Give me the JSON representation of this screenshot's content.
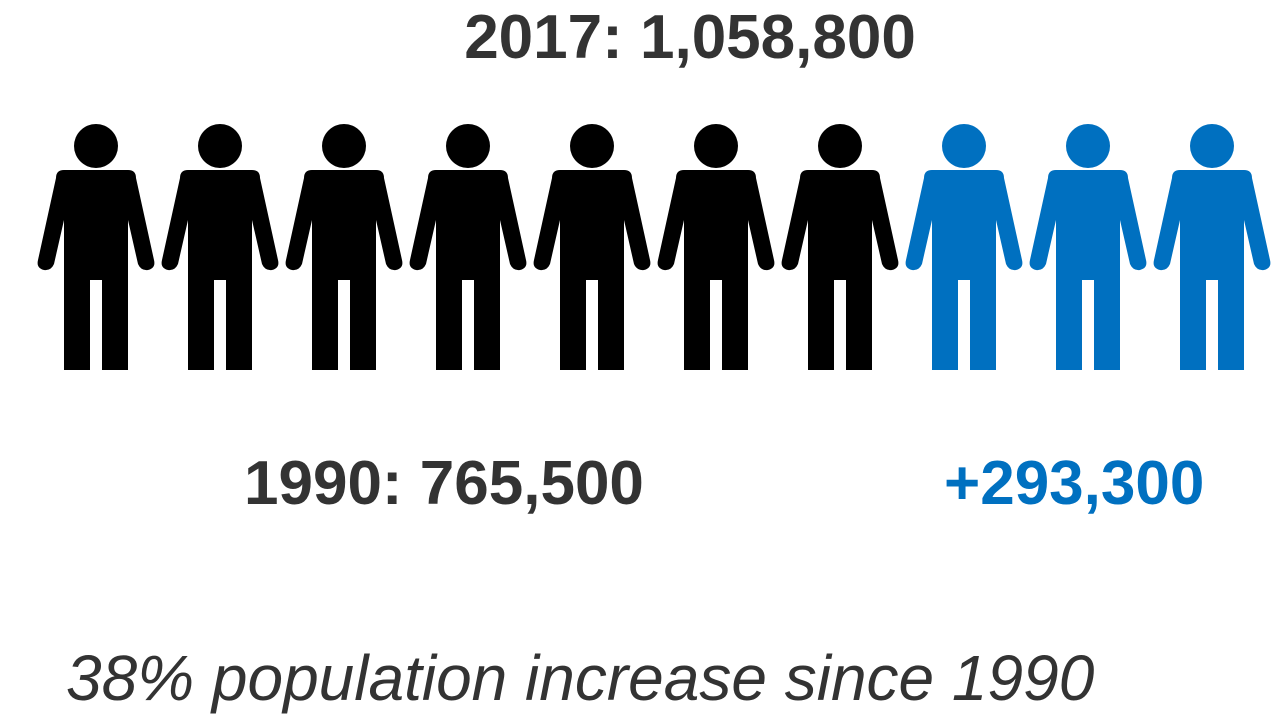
{
  "chart_data": {
    "type": "pictogram",
    "title": "2017: 1,058,800",
    "icon": "person-icon",
    "icon_count": 10,
    "series": [
      {
        "name": "1990: 765,500",
        "value": 765500,
        "icons": 7,
        "color": "#000000"
      },
      {
        "name": "+293,300",
        "value": 293300,
        "icons": 3,
        "color": "#0070c0"
      }
    ],
    "total": 1058800
  },
  "labels": {
    "title": "2017: 1,058,800",
    "base": "1990: 765,500",
    "increase": "+293,300",
    "footnote": "38% population increase since 1990"
  },
  "colors": {
    "base": "#000000",
    "increase": "#0070c0",
    "text": "#333333"
  }
}
